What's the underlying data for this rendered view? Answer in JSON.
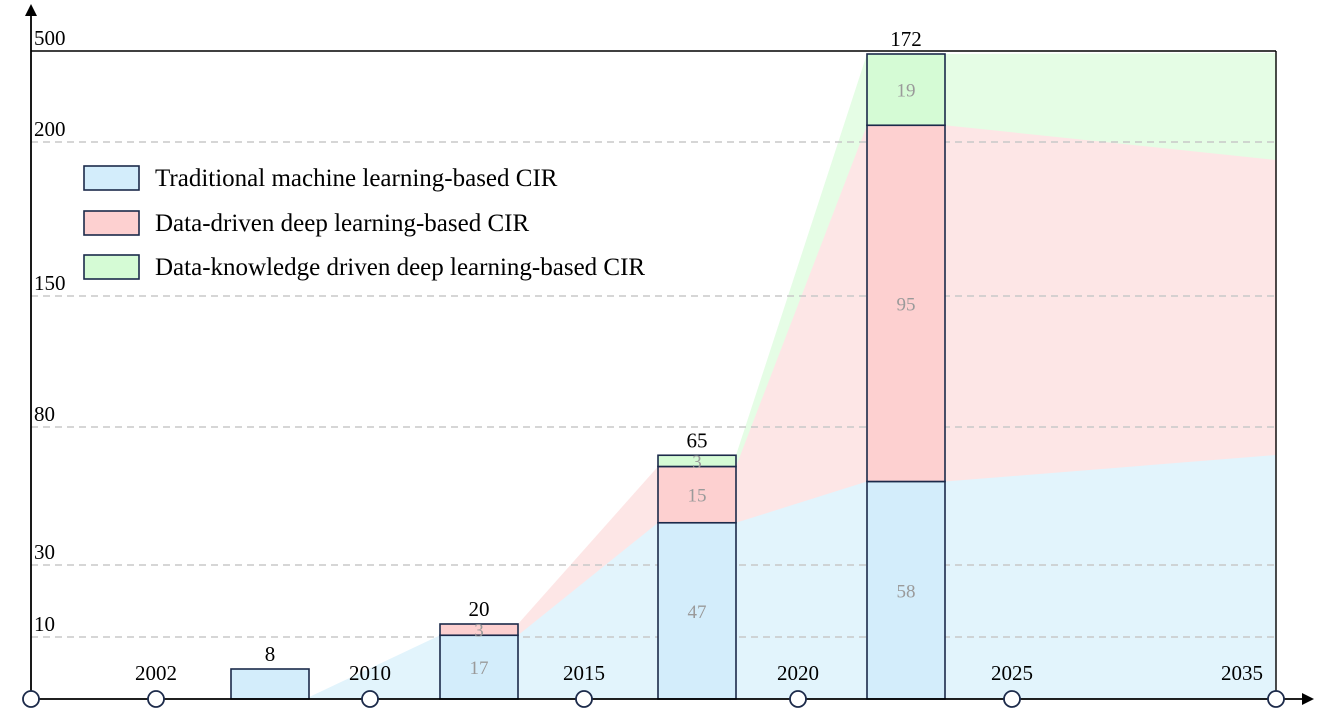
{
  "chart_data": {
    "type": "bar",
    "stacked": true,
    "title": "",
    "xlabel": "",
    "ylabel": "",
    "x_ticks": [
      "2002",
      "2010",
      "2015",
      "2020",
      "2025",
      "2035"
    ],
    "y_ticks": [
      "10",
      "30",
      "80",
      "150",
      "200",
      "500"
    ],
    "grid": "horizontal-dashed",
    "legend_position": "top-left",
    "categories": [
      "2002-2010",
      "2010-2015",
      "2015-2020",
      "2020-2025"
    ],
    "series": [
      {
        "name": "Traditional machine learning-based CIR",
        "values": [
          8,
          17,
          47,
          58
        ],
        "color": "#d3edfb"
      },
      {
        "name": "Data-driven deep learning-based CIR",
        "values": [
          0,
          3,
          15,
          95
        ],
        "color": "#fdd0d0"
      },
      {
        "name": "Data-knowledge driven deep learning-based CIR",
        "values": [
          0,
          0,
          3,
          19
        ],
        "color": "#d5fbd5"
      }
    ],
    "segment_labels": [
      [
        "",
        "17",
        "47",
        "58"
      ],
      [
        "",
        "3",
        "15",
        "95"
      ],
      [
        "",
        "",
        "3",
        "19"
      ]
    ],
    "totals": [
      "8",
      "20",
      "65",
      "172"
    ],
    "trend_area_colors": [
      "#e2f4fc",
      "#fde6e6",
      "#e5fde5"
    ]
  }
}
